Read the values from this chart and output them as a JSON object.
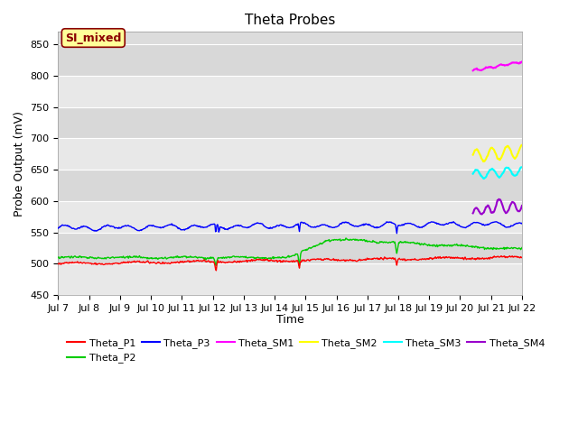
{
  "title": "Theta Probes",
  "xlabel": "Time",
  "ylabel": "Probe Output (mV)",
  "ylim": [
    450,
    870
  ],
  "yticks": [
    450,
    500,
    550,
    600,
    650,
    700,
    750,
    800,
    850
  ],
  "xlim": [
    0,
    15
  ],
  "background_color": "#dcdcdc",
  "plot_bg_light": "#e8e8e8",
  "plot_bg_dark": "#d8d8d8",
  "annotation_text": "SI_mixed",
  "annotation_color": "#8b0000",
  "annotation_bg": "#ffff99",
  "colors": {
    "P1": "#ff0000",
    "P2": "#00cc00",
    "P3": "#0000ff",
    "SM1": "#ff00ff",
    "SM2": "#ffff00",
    "SM3": "#00ffff",
    "SM4": "#9900cc"
  }
}
